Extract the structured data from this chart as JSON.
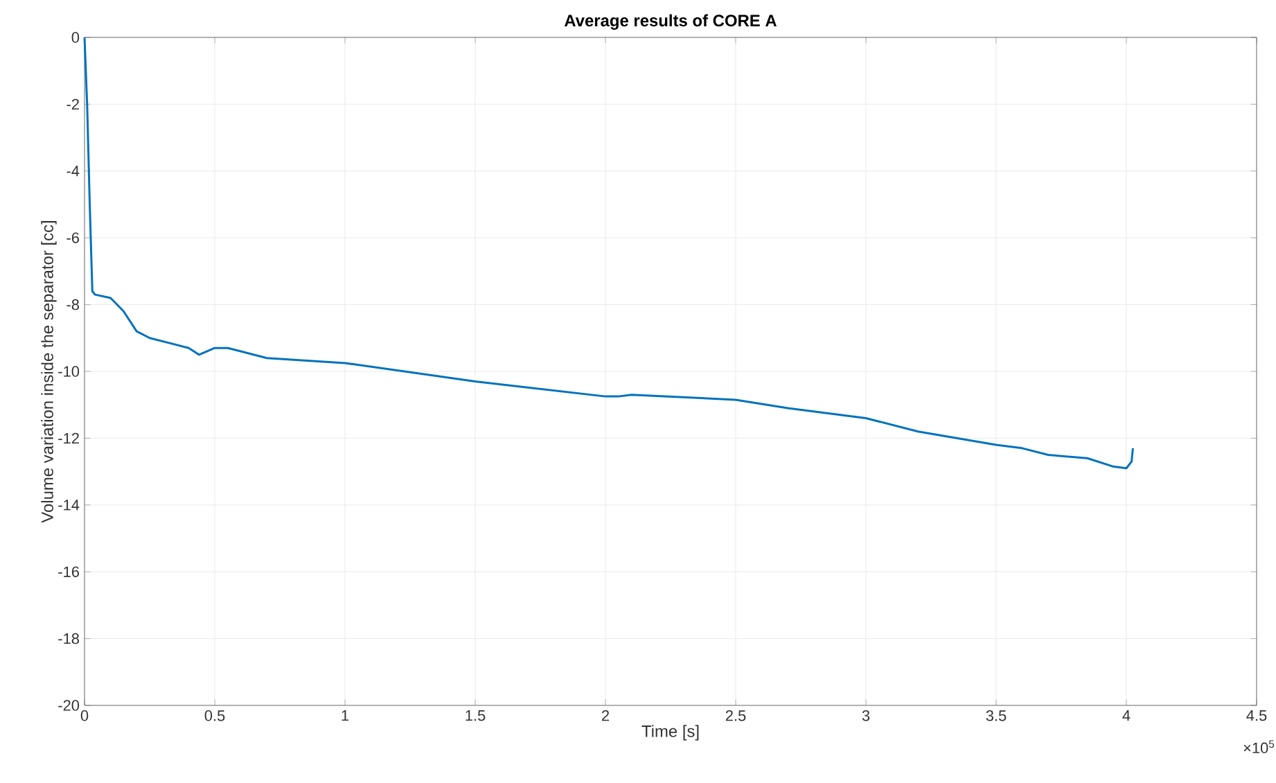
{
  "chart_data": {
    "type": "line",
    "title": "Average results of CORE A",
    "xlabel": "Time [s]",
    "ylabel": "Volume variation inside the separator [cc]",
    "annotations": [
      "×10$^{5}$"
    ],
    "x": [
      0,
      0.01,
      0.02,
      0.03,
      0.04,
      0.1,
      0.15,
      0.2,
      0.25,
      0.35,
      0.4,
      0.44,
      0.5,
      0.55,
      0.6,
      0.7,
      1.0,
      1.5,
      2.0,
      2.05,
      2.1,
      2.5,
      2.7,
      3.0,
      3.2,
      3.5,
      3.6,
      3.7,
      3.85,
      3.95,
      4.0,
      4.02,
      4.025
    ],
    "series": [
      {
        "color": "#0072bd",
        "values": [
          0,
          -2,
          -5,
          -7.6,
          -7.7,
          -7.8,
          -8.2,
          -8.8,
          -9.0,
          -9.2,
          -9.3,
          -9.5,
          -9.3,
          -9.3,
          -9.4,
          -9.6,
          -9.75,
          -10.3,
          -10.75,
          -10.75,
          -10.7,
          -10.85,
          -11.1,
          -11.4,
          -11.8,
          -12.2,
          -12.3,
          -12.5,
          -12.6,
          -12.85,
          -12.9,
          -12.7,
          -12.3
        ]
      }
    ],
    "xlim": [
      0,
      4.5
    ],
    "ylim": [
      -20,
      0
    ],
    "xticks": [
      0,
      0.5,
      1,
      1.5,
      2,
      2.5,
      3,
      3.5,
      4,
      4.5
    ],
    "yticks": [
      -20,
      -18,
      -16,
      -14,
      -12,
      -10,
      -8,
      -6,
      -4,
      -2,
      0
    ],
    "grid": true,
    "line_style": "solid",
    "marker": "none"
  }
}
